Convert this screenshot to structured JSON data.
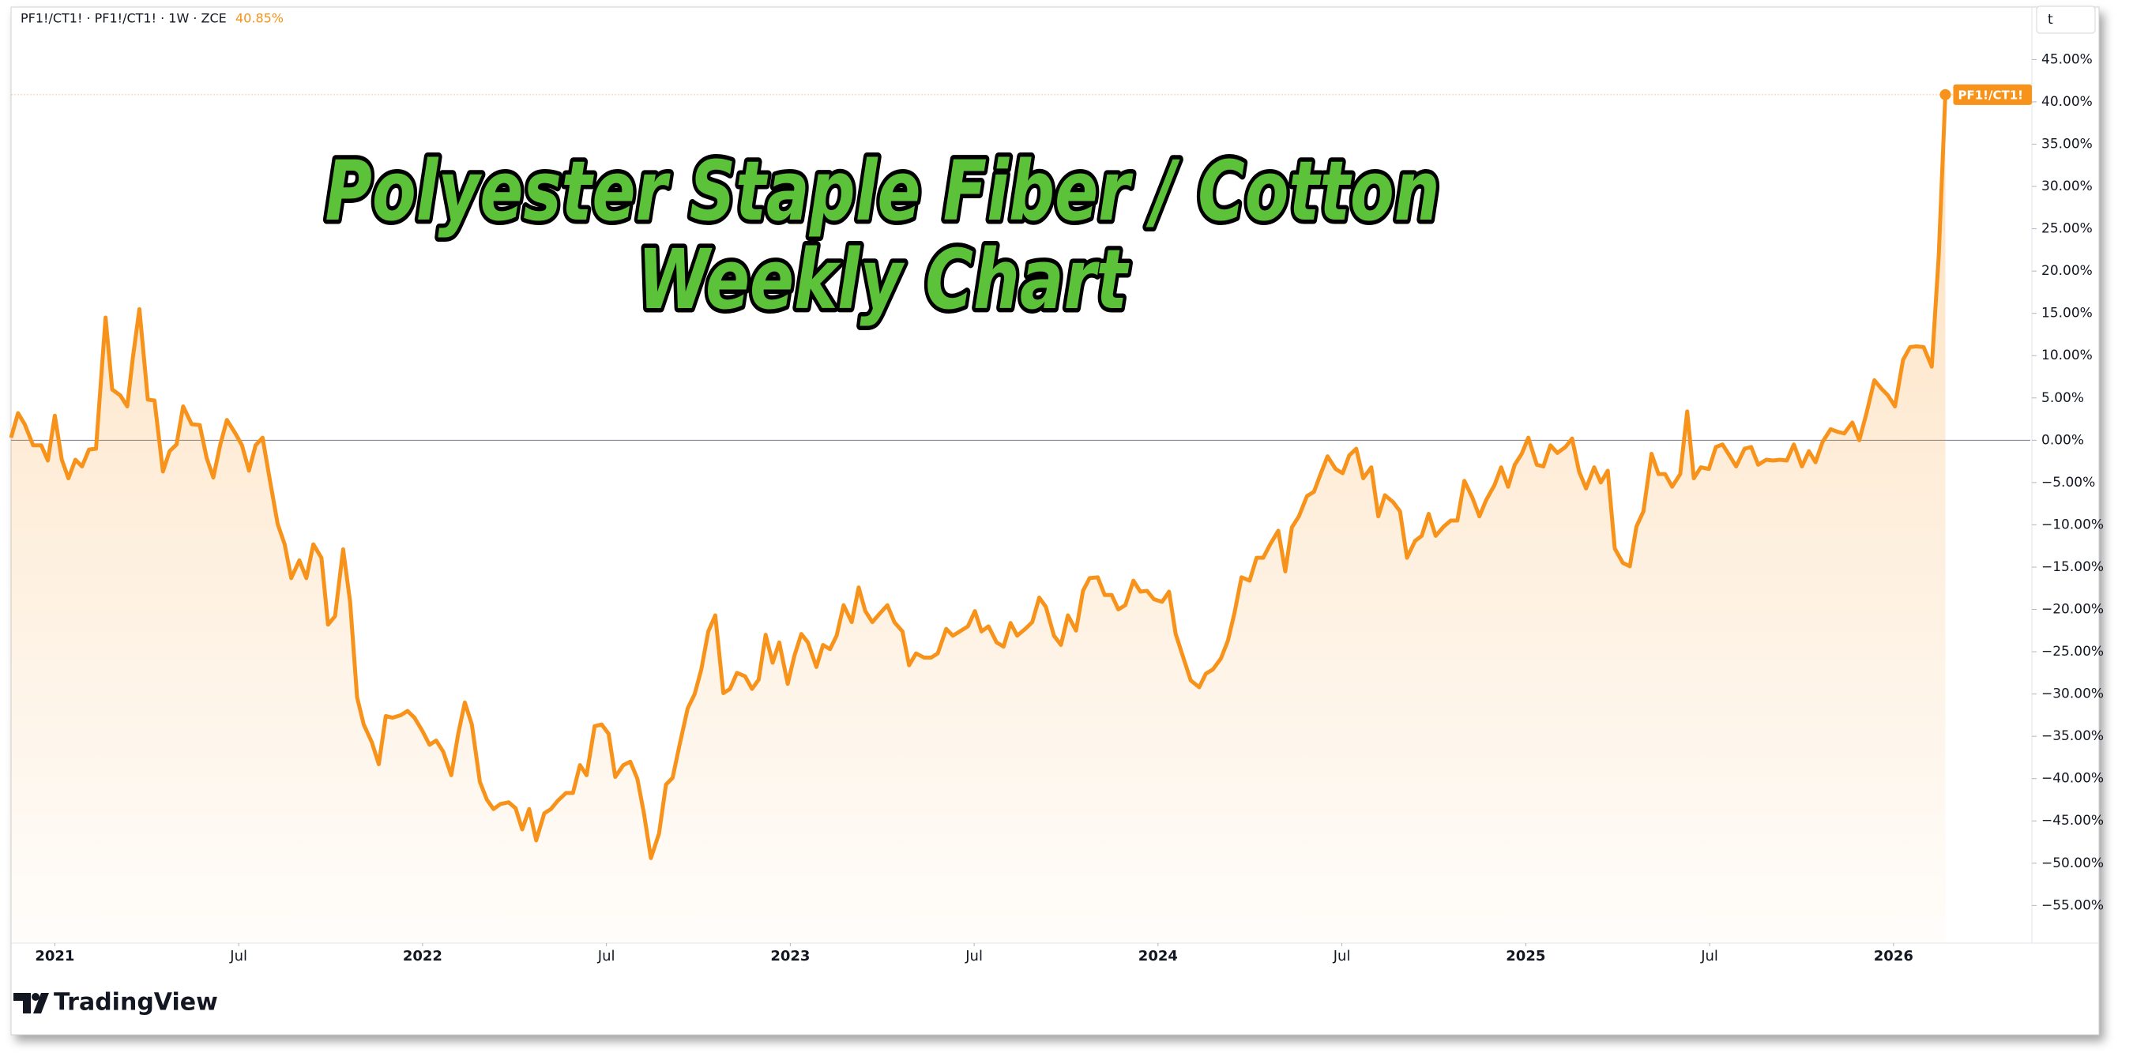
{
  "chart_data": {
    "type": "line",
    "title": [
      "Polyester Staple Fiber / Cotton",
      "Weekly Chart"
    ],
    "header": "PF1!/CT1! · PF1!/CT1! · 1W · ZCE",
    "last_value_label": "40.85%",
    "x": [
      2020.881,
      2020.9,
      2020.918,
      2020.941,
      2020.963,
      2020.981,
      2021.0,
      2021.019,
      2021.037,
      2021.056,
      2021.074,
      2021.093,
      2021.112,
      2021.138,
      2021.156,
      2021.178,
      2021.197,
      2021.212,
      2021.23,
      2021.253,
      2021.271,
      2021.294,
      2021.312,
      2021.331,
      2021.349,
      2021.372,
      2021.394,
      2021.413,
      2021.431,
      2021.45,
      2021.468,
      2021.491,
      2021.509,
      2021.528,
      2021.546,
      2021.565,
      2021.584,
      2021.606,
      2021.625,
      2021.643,
      2021.665,
      2021.684,
      2021.703,
      2021.725,
      2021.743,
      2021.762,
      2021.784,
      2021.803,
      2021.822,
      2021.84,
      2021.862,
      2021.881,
      2021.9,
      2021.918,
      2021.941,
      2021.959,
      2021.978,
      2022.0,
      2022.019,
      2022.037,
      2022.056,
      2022.078,
      2022.097,
      2022.115,
      2022.134,
      2022.156,
      2022.175,
      2022.193,
      2022.212,
      2022.234,
      2022.253,
      2022.271,
      2022.29,
      2022.309,
      2022.331,
      2022.349,
      2022.368,
      2022.39,
      2022.409,
      2022.428,
      2022.446,
      2022.468,
      2022.487,
      2022.506,
      2022.524,
      2022.546,
      2022.565,
      2022.584,
      2022.602,
      2022.621,
      2022.643,
      2022.662,
      2022.68,
      2022.699,
      2022.721,
      2022.74,
      2022.758,
      2022.777,
      2022.796,
      2022.818,
      2022.836,
      2022.855,
      2022.877,
      2022.896,
      2022.914,
      2022.933,
      2022.952,
      2022.97,
      2022.993,
      2023.011,
      2023.03,
      2023.048,
      2023.071,
      2023.089,
      2023.108,
      2023.126,
      2023.145,
      2023.167,
      2023.186,
      2023.204,
      2023.223,
      2023.245,
      2023.264,
      2023.283,
      2023.305,
      2023.323,
      2023.342,
      2023.364,
      2023.383,
      2023.401,
      2023.424,
      2023.442,
      2023.461,
      2023.483,
      2023.502,
      2023.52,
      2023.539,
      2023.561,
      2023.58,
      2023.599,
      2023.617,
      2023.639,
      2023.658,
      2023.677,
      2023.695,
      2023.717,
      2023.736,
      2023.755,
      2023.777,
      2023.796,
      2023.814,
      2023.836,
      2023.855,
      2023.874,
      2023.892,
      2023.911,
      2023.933,
      2023.952,
      2023.97,
      2023.989,
      2024.011,
      2024.03,
      2024.048,
      2024.071,
      2024.089,
      2024.112,
      2024.13,
      2024.149,
      2024.171,
      2024.19,
      2024.208,
      2024.227,
      2024.249,
      2024.268,
      2024.286,
      2024.305,
      2024.327,
      2024.346,
      2024.364,
      2024.383,
      2024.405,
      2024.424,
      2024.442,
      2024.461,
      2024.483,
      2024.502,
      2024.52,
      2024.539,
      2024.558,
      2024.58,
      2024.599,
      2024.617,
      2024.639,
      2024.658,
      2024.677,
      2024.699,
      2024.717,
      2024.736,
      2024.755,
      2024.777,
      2024.796,
      2024.814,
      2024.833,
      2024.855,
      2024.874,
      2024.892,
      2024.915,
      2024.933,
      2024.952,
      2024.97,
      2024.989,
      2025.007,
      2025.03,
      2025.048,
      2025.067,
      2025.086,
      2025.108,
      2025.126,
      2025.145,
      2025.164,
      2025.186,
      2025.204,
      2025.223,
      2025.242,
      2025.264,
      2025.283,
      2025.301,
      2025.32,
      2025.342,
      2025.361,
      2025.379,
      2025.398,
      2025.42,
      2025.439,
      2025.457,
      2025.476,
      2025.498,
      2025.517,
      2025.535,
      2025.554,
      2025.572,
      2025.595,
      2025.613,
      2025.632,
      2025.654,
      2025.673,
      2025.691,
      2025.71,
      2025.729,
      2025.751,
      2025.77,
      2025.788,
      2025.807,
      2025.829,
      2025.848,
      2025.866,
      2025.888,
      2025.907,
      2025.926,
      2025.948,
      2025.967,
      2025.985,
      2026.004,
      2026.026,
      2026.045,
      2026.063,
      2026.082,
      2026.104,
      2026.123,
      2026.141
    ],
    "series": [
      {
        "name": "PF1!/CT1!",
        "color": "#f7931a",
        "values": [
          0.3,
          3.2,
          1.9,
          -0.6,
          -0.6,
          -2.4,
          2.9,
          -2.3,
          -4.5,
          -2.3,
          -3.1,
          -1.1,
          -1,
          14.5,
          6,
          5.3,
          4,
          9.7,
          15.5,
          4.8,
          4.7,
          -3.7,
          -1.3,
          -0.5,
          4,
          1.9,
          1.8,
          -2.1,
          -4.4,
          -0.5,
          2.4,
          0.8,
          -0.6,
          -3.6,
          -0.6,
          0.3,
          -4.5,
          -9.9,
          -12.3,
          -16.3,
          -14.2,
          -16.3,
          -12.3,
          -13.9,
          -21.8,
          -20.8,
          -12.9,
          -19.1,
          -30.4,
          -33.6,
          -35.7,
          -38.3,
          -32.6,
          -32.8,
          -32.5,
          -32,
          -32.8,
          -34.4,
          -36,
          -35.5,
          -36.8,
          -39.6,
          -34.7,
          -31,
          -33.6,
          -40.4,
          -42.5,
          -43.6,
          -43,
          -42.8,
          -43.5,
          -46,
          -43.6,
          -47.3,
          -44.1,
          -43.6,
          -42.6,
          -41.7,
          -41.7,
          -38.4,
          -39.6,
          -33.8,
          -33.6,
          -34.7,
          -39.8,
          -38.4,
          -38,
          -40,
          -44.1,
          -49.4,
          -46.5,
          -40.7,
          -39.9,
          -36,
          -31.7,
          -30,
          -27.1,
          -22.6,
          -20.7,
          -29.9,
          -29.4,
          -27.5,
          -27.9,
          -29.4,
          -28.3,
          -23,
          -26.3,
          -23.9,
          -28.8,
          -25.5,
          -22.9,
          -23.9,
          -26.8,
          -24.2,
          -24.7,
          -23.1,
          -19.5,
          -21.5,
          -17.4,
          -20.2,
          -21.5,
          -20.4,
          -19.5,
          -21.5,
          -22.6,
          -26.6,
          -25.2,
          -25.7,
          -25.7,
          -25.2,
          -22.3,
          -23.1,
          -22.6,
          -22,
          -20.2,
          -22.6,
          -22,
          -23.9,
          -24.4,
          -21.6,
          -23.1,
          -22.3,
          -21.5,
          -18.6,
          -19.7,
          -23.1,
          -24.2,
          -20.7,
          -22.5,
          -17.8,
          -16.3,
          -16.2,
          -18.3,
          -18.3,
          -20,
          -19.5,
          -16.6,
          -17.9,
          -17.8,
          -18.8,
          -19.1,
          -17.9,
          -22.9,
          -26,
          -28.4,
          -29.2,
          -27.6,
          -27.1,
          -25.8,
          -23.7,
          -20.4,
          -16.2,
          -16.6,
          -13.9,
          -13.9,
          -12.3,
          -10.7,
          -15.5,
          -10.3,
          -9,
          -6.6,
          -6.1,
          -4,
          -1.9,
          -3.4,
          -3.9,
          -1.8,
          -1,
          -4.5,
          -3.2,
          -9,
          -6.5,
          -7.3,
          -8.4,
          -13.9,
          -11.9,
          -11.3,
          -8.7,
          -11.3,
          -10.2,
          -9.5,
          -9.5,
          -4.8,
          -6.8,
          -9,
          -7.1,
          -5.3,
          -3.2,
          -5.5,
          -2.9,
          -1.6,
          0.3,
          -2.9,
          -3.1,
          -0.6,
          -1.5,
          -0.8,
          0.2,
          -3.7,
          -5.7,
          -3.2,
          -5,
          -3.6,
          -12.8,
          -14.5,
          -14.9,
          -10.2,
          -8.4,
          -1.6,
          -4,
          -4,
          -5.5,
          -4,
          3.4,
          -4.5,
          -3.2,
          -3.4,
          -0.8,
          -0.5,
          -1.8,
          -3.1,
          -1,
          -0.8,
          -2.9,
          -2.3,
          -2.4,
          -2.3,
          -2.4,
          -0.5,
          -3.1,
          -1.3,
          -2.6,
          -0.2,
          1.3,
          1,
          0.8,
          2.1,
          0,
          3.1,
          7.1,
          6.1,
          5.3,
          4,
          9.5,
          11,
          11.1,
          11,
          8.7,
          21.8,
          40.85
        ]
      }
    ],
    "xlim": [
      2020.881,
      2026.372
    ],
    "xticks": [
      2021,
      {
        "value": 2021.5,
        "label": "Jul"
      },
      2022,
      {
        "value": 2022.5,
        "label": "Jul"
      },
      2023,
      {
        "value": 2023.5,
        "label": "Jul"
      },
      2024,
      {
        "value": 2024.5,
        "label": "Jul"
      },
      2025,
      {
        "value": 2025.5,
        "label": "Jul"
      },
      2026
    ],
    "ylim": [
      -59.45,
      51.2
    ],
    "yticks": [
      {
        "value": 45,
        "label": "45.00%"
      },
      {
        "value": 40,
        "label": "40.00%"
      },
      {
        "value": 35,
        "label": "35.00%"
      },
      {
        "value": 30,
        "label": "30.00%"
      },
      {
        "value": 25,
        "label": "25.00%"
      },
      {
        "value": 20,
        "label": "20.00%"
      },
      {
        "value": 15,
        "label": "15.00%"
      },
      {
        "value": 10,
        "label": "10.00%"
      },
      {
        "value": 5,
        "label": "5.00%"
      },
      {
        "value": 0,
        "label": "0.00%"
      },
      {
        "value": -5,
        "label": "−5.00%"
      },
      {
        "value": -10,
        "label": "−10.00%"
      },
      {
        "value": -15,
        "label": "−15.00%"
      },
      {
        "value": -20,
        "label": "−20.00%"
      },
      {
        "value": -25,
        "label": "−25.00%"
      },
      {
        "value": -30,
        "label": "−30.00%"
      },
      {
        "value": -35,
        "label": "−35.00%"
      },
      {
        "value": -40,
        "label": "−40.00%"
      },
      {
        "value": -45,
        "label": "−45.00%"
      },
      {
        "value": -50,
        "label": "−50.00%"
      },
      {
        "value": -55,
        "label": "−55.00%"
      }
    ],
    "grid": false,
    "zero_line": true,
    "area_fill": true,
    "last_value_line": true
  },
  "corner_button": "t",
  "branding": "TradingView"
}
